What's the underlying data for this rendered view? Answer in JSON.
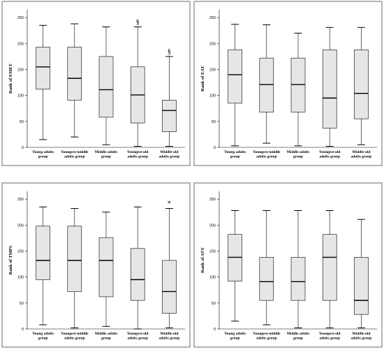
{
  "chart_data": [
    {
      "type": "box",
      "ylabel": "Rank of EMET",
      "categories": [
        "Young adults group",
        "Youngest-middle adults group",
        "Middle adults group",
        "Youngest-old adults group",
        "Middle-old adults group"
      ],
      "min": [
        15,
        20,
        5,
        2,
        2
      ],
      "q1": [
        112,
        91,
        58,
        47,
        30
      ],
      "median": [
        155,
        133,
        111,
        101,
        71
      ],
      "q3": [
        193,
        193,
        175,
        155,
        91
      ],
      "max": [
        235,
        238,
        232,
        232,
        175
      ],
      "annotations": [
        null,
        null,
        null,
        "§",
        "§"
      ],
      "ylim": [
        0,
        265
      ],
      "yticks": [
        0,
        50,
        100,
        150,
        200,
        250
      ],
      "color": "#e6e6e6"
    },
    {
      "type": "box",
      "ylabel": "Rank of EAT",
      "categories": [
        "Young adults group",
        "Youngest-middle adults group",
        "Middle adults group",
        "Youngest-old adults group",
        "Middle-old adults group"
      ],
      "min": [
        3,
        8,
        3,
        2,
        5
      ],
      "q1": [
        85,
        68,
        68,
        37,
        55
      ],
      "median": [
        140,
        121,
        121,
        95,
        104
      ],
      "q3": [
        188,
        172,
        172,
        188,
        188
      ],
      "max": [
        237,
        236,
        220,
        231,
        231
      ],
      "annotations": [
        null,
        null,
        null,
        null,
        null
      ],
      "ylim": [
        0,
        265
      ],
      "yticks": [
        0,
        50,
        100,
        150,
        200,
        250
      ],
      "color": "#e6e6e6"
    },
    {
      "type": "box",
      "ylabel": "Rank of TMPS",
      "categories": [
        "Young adults group",
        "Youngest-middle adults group",
        "Middle adults group",
        "Youngest-old adults group",
        "Middle-old adults group"
      ],
      "min": [
        8,
        2,
        5,
        0,
        2
      ],
      "q1": [
        95,
        72,
        62,
        55,
        30
      ],
      "median": [
        132,
        132,
        132,
        95,
        72
      ],
      "q3": [
        198,
        198,
        176,
        155,
        132
      ],
      "max": [
        235,
        232,
        225,
        235,
        232
      ],
      "annotations": [
        null,
        null,
        null,
        null,
        "*"
      ],
      "ylim": [
        0,
        265
      ],
      "yticks": [
        0,
        50,
        100,
        150,
        200,
        250
      ],
      "color": "#e6e6e6"
    },
    {
      "type": "box",
      "ylabel": "Rank of ATT",
      "categories": [
        "Young adults group",
        "Youngest-middle adults group",
        "Middle adults group",
        "Youngest-old adults group",
        "Middle-old adults group"
      ],
      "min": [
        15,
        8,
        2,
        2,
        2
      ],
      "q1": [
        92,
        55,
        55,
        55,
        28
      ],
      "median": [
        138,
        91,
        91,
        138,
        55
      ],
      "q3": [
        182,
        138,
        138,
        182,
        138
      ],
      "max": [
        228,
        228,
        228,
        228,
        211
      ],
      "annotations": [
        null,
        null,
        null,
        null,
        null
      ],
      "ylim": [
        0,
        265
      ],
      "yticks": [
        0,
        50,
        100,
        150,
        200,
        250
      ],
      "color": "#e6e6e6"
    }
  ]
}
